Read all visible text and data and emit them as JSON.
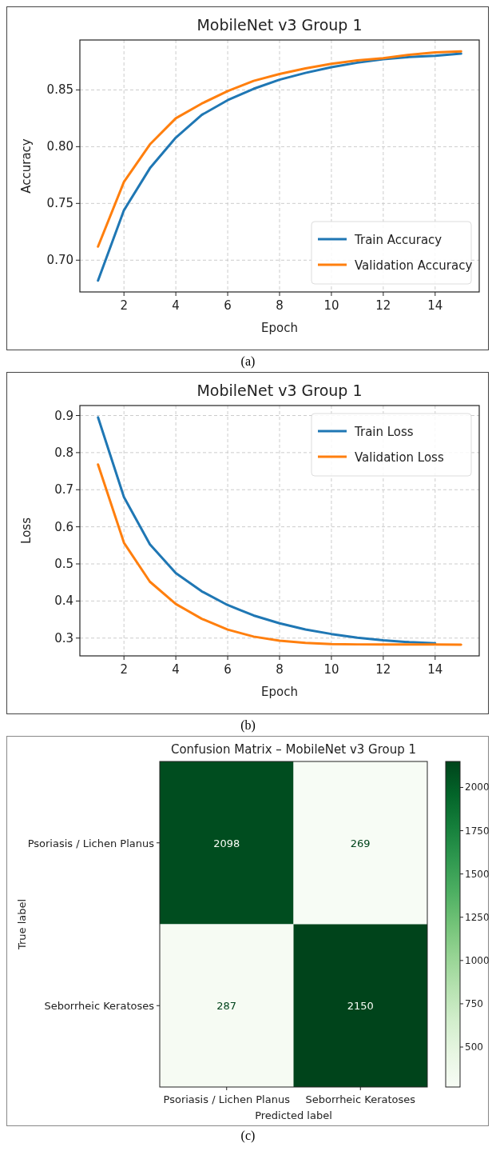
{
  "chart_data": [
    {
      "type": "line",
      "title": "MobileNet v3 Group 1",
      "xlabel": "Epoch",
      "ylabel": "Accuracy",
      "x": [
        1,
        2,
        3,
        4,
        5,
        6,
        7,
        8,
        9,
        10,
        11,
        12,
        13,
        14,
        15
      ],
      "series": [
        {
          "name": "Train Accuracy",
          "color": "#1f77b4",
          "values": [
            0.682,
            0.744,
            0.781,
            0.808,
            0.828,
            0.841,
            0.851,
            0.859,
            0.865,
            0.87,
            0.874,
            0.877,
            0.879,
            0.88,
            0.882
          ]
        },
        {
          "name": "Validation Accuracy",
          "color": "#ff7f0e",
          "values": [
            0.712,
            0.769,
            0.802,
            0.825,
            0.838,
            0.849,
            0.858,
            0.864,
            0.869,
            0.873,
            0.876,
            0.878,
            0.881,
            0.883,
            0.884
          ]
        }
      ],
      "xlim": [
        0.3,
        15.7
      ],
      "xticks": [
        2,
        4,
        6,
        8,
        10,
        12,
        14
      ],
      "ylim": [
        0.672,
        0.894
      ],
      "yticks": [
        {
          "value": 0.7,
          "label": "0.70"
        },
        {
          "value": 0.75,
          "label": "0.75"
        },
        {
          "value": 0.8,
          "label": "0.80"
        },
        {
          "value": 0.85,
          "label": "0.85"
        }
      ],
      "grid": true,
      "legend": "bottom right",
      "annotations": [
        "(a)"
      ]
    },
    {
      "type": "line",
      "title": "MobileNet v3 Group 1",
      "xlabel": "Epoch",
      "ylabel": "Loss",
      "x": [
        1,
        2,
        3,
        4,
        5,
        6,
        7,
        8,
        9,
        10,
        11,
        12,
        13,
        14,
        15
      ],
      "series": [
        {
          "name": "Train Loss",
          "color": "#1f77b4",
          "values": [
            0.895,
            0.68,
            0.553,
            0.475,
            0.426,
            0.389,
            0.361,
            0.34,
            0.323,
            0.311,
            0.301,
            0.294,
            0.289,
            0.286,
            null
          ]
        },
        {
          "name": "Validation Loss",
          "color": "#ff7f0e",
          "values": [
            0.768,
            0.557,
            0.452,
            0.392,
            0.352,
            0.323,
            0.304,
            0.293,
            0.287,
            0.284,
            0.283,
            0.283,
            0.283,
            0.283,
            0.282
          ]
        }
      ],
      "xlim": [
        0.3,
        15.7
      ],
      "xticks": [
        2,
        4,
        6,
        8,
        10,
        12,
        14
      ],
      "ylim": [
        0.252,
        0.927
      ],
      "yticks": [
        0.3,
        0.4,
        0.5,
        0.6,
        0.7,
        0.8,
        0.9
      ],
      "grid": true,
      "legend": "top right",
      "annotations": [
        "(b)"
      ]
    },
    {
      "type": "heatmap",
      "title": "Confusion Matrix – MobileNet v3 Group 1",
      "xlabel": "Predicted label",
      "ylabel": "True label",
      "categories": [
        "Psoriasis / Lichen Planus",
        "Seborrheic Keratoses"
      ],
      "y_categories": [
        "Psoriasis / Lichen Planus",
        "Seborrheic Keratoses"
      ],
      "cells": [
        [
          2098,
          269
        ],
        [
          287,
          2150
        ]
      ],
      "clim": [
        269,
        2150
      ],
      "cticks": [
        500,
        750,
        1000,
        1250,
        1500,
        1750,
        2000
      ],
      "data_labels": true,
      "annotations": [
        "(c)"
      ]
    }
  ]
}
